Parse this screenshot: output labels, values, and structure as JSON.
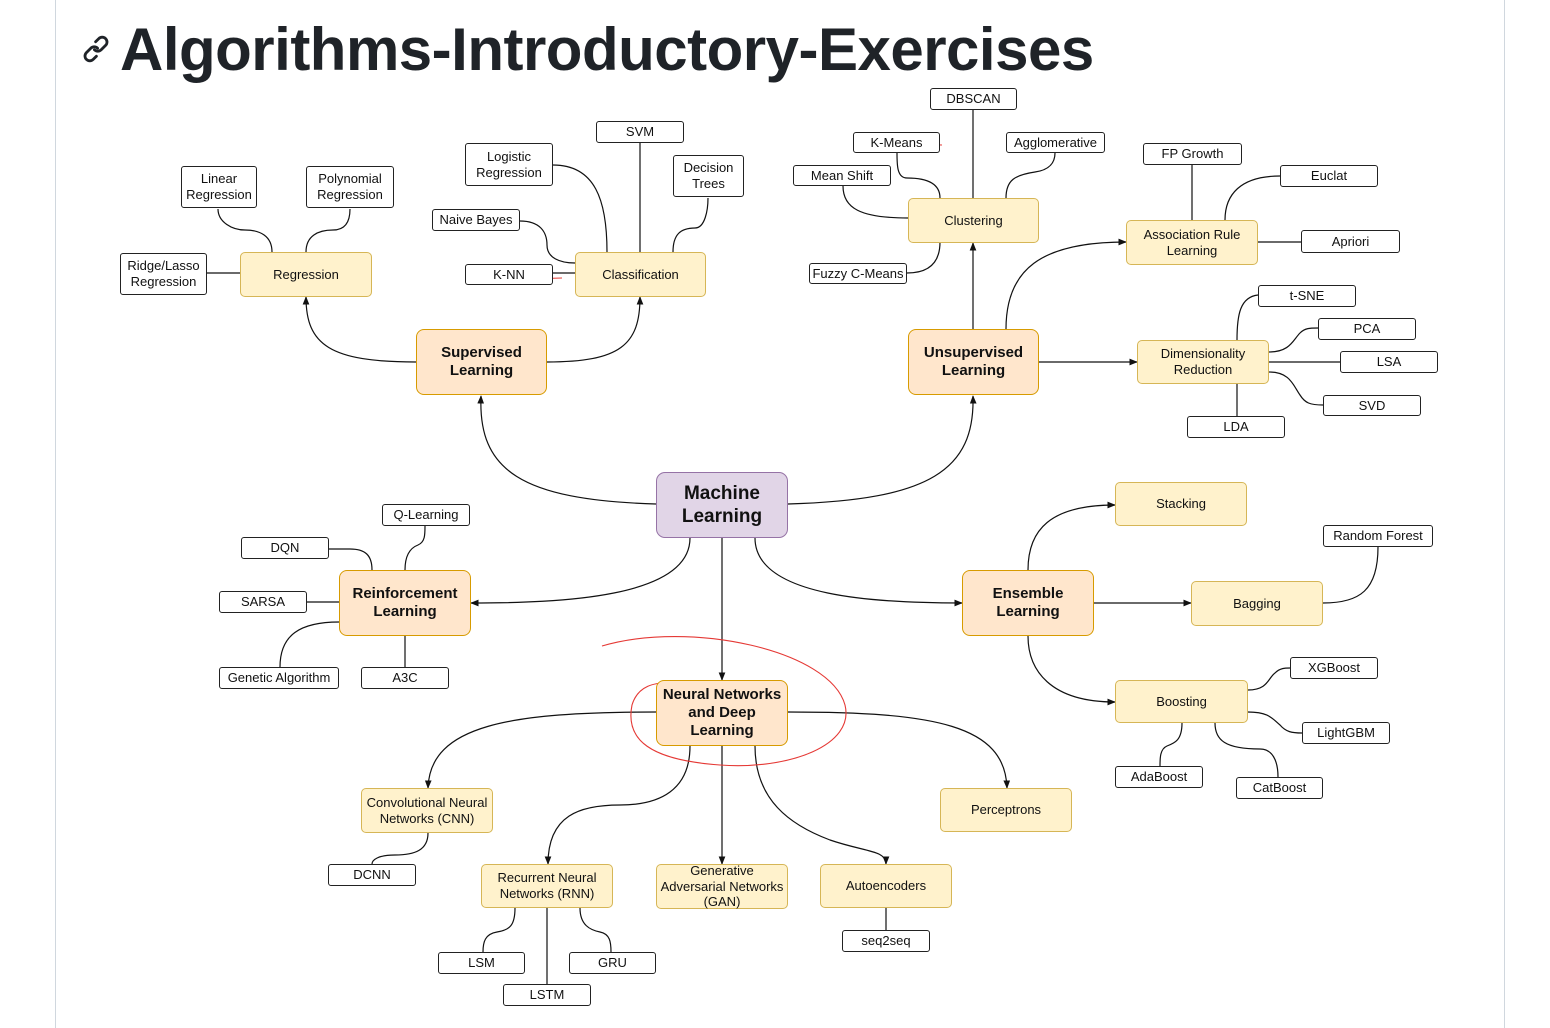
{
  "heading": {
    "title": "Algorithms-Introductory-Exercises",
    "icon": "link-icon"
  },
  "colors": {
    "root_fill": "#e1d5e7",
    "root_stroke": "#9673a6",
    "main_fill": "#ffe6cc",
    "main_stroke": "#d79b00",
    "cat_fill": "#fff2cc",
    "cat_stroke": "#d6b656",
    "leaf_fill": "#ffffff",
    "leaf_stroke": "#222222",
    "annotation": "#e53935"
  },
  "diagram": {
    "root": "Machine\nLearning",
    "supervised": "Supervised\nLearning",
    "unsupervised": "Unsupervised\nLearning",
    "reinforcement": "Reinforcement\nLearning",
    "ensemble": "Ensemble\nLearning",
    "nn": "Neural Networks\nand Deep\nLearning",
    "regression": "Regression",
    "classification": "Classification",
    "clustering": "Clustering",
    "association": "Association Rule\nLearning",
    "dimred": "Dimensionality\nReduction",
    "stacking": "Stacking",
    "bagging": "Bagging",
    "boosting": "Boosting",
    "cnn": "Convolutional Neural\nNetworks (CNN)",
    "rnn": "Recurrent Neural\nNetworks (RNN)",
    "gan": "Generative\nAdversarial Networks\n(GAN)",
    "autoencoders": "Autoencoders",
    "perceptrons": "Perceptrons",
    "linear_regression": "Linear\nRegression",
    "polynomial_regression": "Polynomial\nRegression",
    "ridge_lasso": "Ridge/Lasso\nRegression",
    "logistic_regression": "Logistic\nRegression",
    "svm": "SVM",
    "decision_trees": "Decision\nTrees",
    "naive_bayes": "Naive Bayes",
    "knn": "K-NN",
    "dbscan": "DBSCAN",
    "kmeans": "K-Means",
    "agglomerative": "Agglomerative",
    "mean_shift": "Mean Shift",
    "fuzzy_cmeans": "Fuzzy C-Means",
    "fp_growth": "FP Growth",
    "euclat": "Euclat",
    "apriori": "Apriori",
    "tsne": "t-SNE",
    "pca": "PCA",
    "lsa": "LSA",
    "svd": "SVD",
    "lda": "LDA",
    "qlearning": "Q-Learning",
    "dqn": "DQN",
    "sarsa": "SARSA",
    "genetic": "Genetic Algorithm",
    "a3c": "A3C",
    "random_forest": "Random Forest",
    "xgboost": "XGBoost",
    "lightgbm": "LightGBM",
    "adaboost": "AdaBoost",
    "catboost": "CatBoost",
    "dcnn": "DCNN",
    "lsm": "LSM",
    "gru": "GRU",
    "lstm": "LSTM",
    "seq2seq": "seq2seq"
  }
}
